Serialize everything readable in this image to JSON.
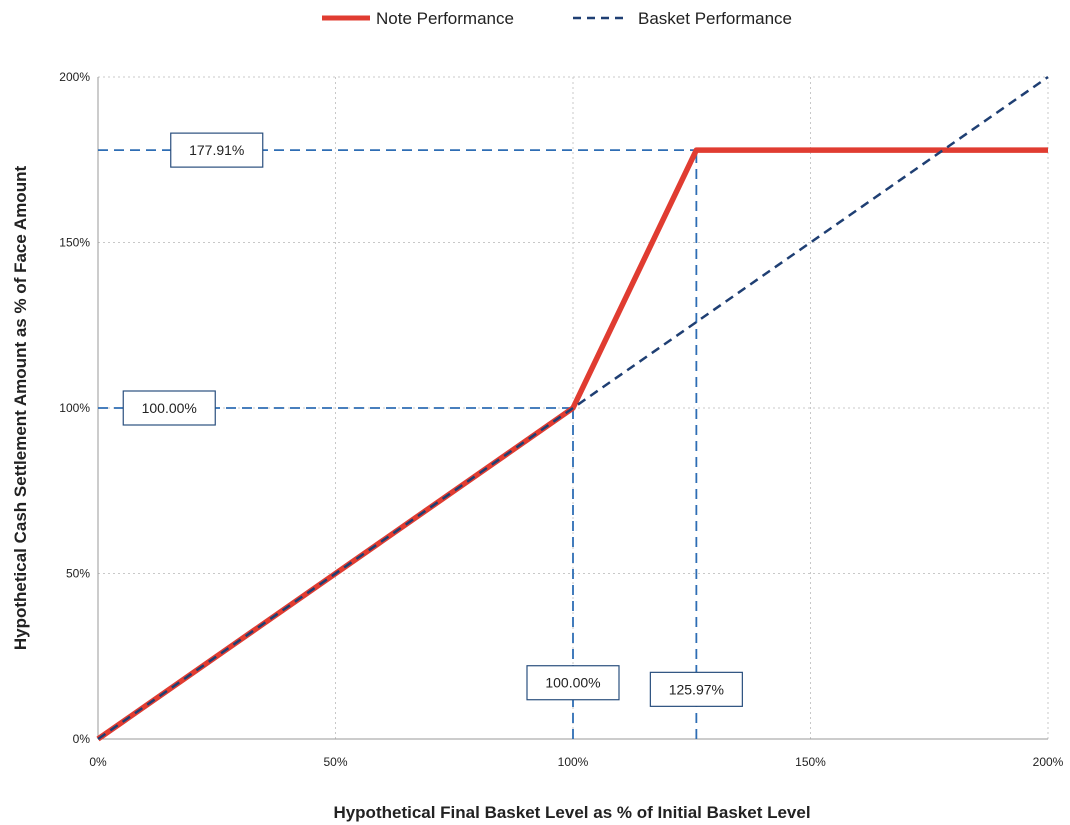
{
  "chart_data": {
    "type": "line",
    "xlabel": "Hypothetical Final Basket Level as % of Initial Basket Level",
    "ylabel": "Hypothetical Cash Settlement Amount as % of Face Amount",
    "xlim": [
      0,
      200
    ],
    "ylim": [
      0,
      200
    ],
    "x_ticks": [
      0,
      50,
      100,
      150,
      200
    ],
    "y_ticks": [
      0,
      50,
      100,
      150,
      200
    ],
    "x_tick_labels": [
      "0%",
      "50%",
      "100%",
      "150%",
      "200%"
    ],
    "y_tick_labels": [
      "0%",
      "50%",
      "100%",
      "150%",
      "200%"
    ],
    "grid": true,
    "legend_position": "top-center",
    "series": [
      {
        "name": "Note Performance",
        "color": "#e03c31",
        "style": "solid",
        "x": [
          0,
          100,
          125.97,
          200
        ],
        "y": [
          0,
          100,
          177.91,
          177.91
        ]
      },
      {
        "name": "Basket Performance",
        "color": "#1f3f73",
        "style": "dashed",
        "x": [
          0,
          200
        ],
        "y": [
          0,
          200
        ]
      }
    ],
    "reference_lines": [
      {
        "orientation": "horizontal",
        "value": 177.91,
        "from": 0,
        "to": 125.97
      },
      {
        "orientation": "horizontal",
        "value": 100,
        "from": 0,
        "to": 100
      },
      {
        "orientation": "vertical",
        "value": 100,
        "from": 0,
        "to": 100
      },
      {
        "orientation": "vertical",
        "value": 125.97,
        "from": 0,
        "to": 177.91
      }
    ],
    "annotations": [
      {
        "text": "177.91%",
        "x": 25,
        "y": 177.91,
        "anchor": "left-axis"
      },
      {
        "text": "100.00%",
        "x": 15,
        "y": 100,
        "anchor": "left-axis"
      },
      {
        "text": "100.00%",
        "x": 100,
        "y": 17,
        "anchor": "bottom-axis"
      },
      {
        "text": "125.97%",
        "x": 125.97,
        "y": 15,
        "anchor": "bottom-axis"
      }
    ],
    "ref_color": "#2e6db4"
  }
}
